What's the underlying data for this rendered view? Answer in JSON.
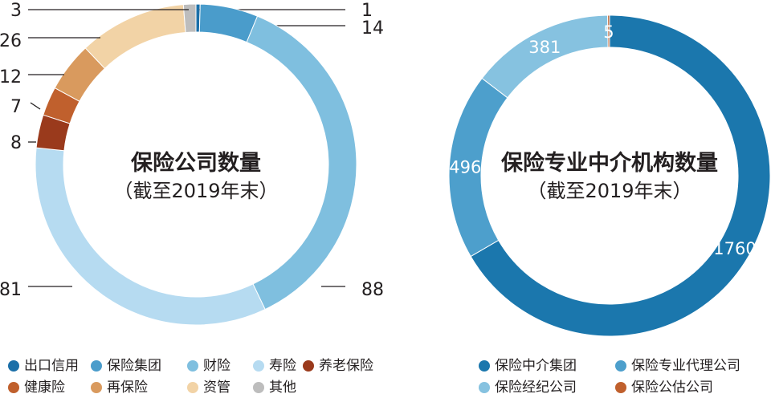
{
  "chart_data": [
    {
      "type": "pie",
      "title": "保险公司数量",
      "subtitle": "（截至2019年末）",
      "categories": [
        "出口信用",
        "保险集团",
        "财险",
        "寿险",
        "养老保险",
        "健康险",
        "再保险",
        "资管",
        "其他"
      ],
      "values": [
        1,
        14,
        88,
        81,
        8,
        7,
        12,
        26,
        3
      ],
      "colors": [
        "#1b6fa8",
        "#4a9ccb",
        "#7fbfdf",
        "#b6dbf1",
        "#9a3a1c",
        "#c0602d",
        "#d99a5e",
        "#f2d3a6",
        "#bdbdbd"
      ],
      "labels": [
        "1",
        "14",
        "88",
        "81",
        "8",
        "7",
        "12",
        "26",
        "3"
      ]
    },
    {
      "type": "pie",
      "title": "保险专业中介机构数量",
      "subtitle": "（截至2019年末）",
      "categories": [
        "保险中介集团",
        "保险专业代理公司",
        "保险经纪公司",
        "保险公估公司"
      ],
      "values": [
        1760,
        496,
        381,
        5
      ],
      "colors": [
        "#1b77ad",
        "#4d9fcc",
        "#86c2e0",
        "#c0602d"
      ],
      "labels": [
        "1760",
        "496",
        "381",
        "5"
      ]
    }
  ]
}
